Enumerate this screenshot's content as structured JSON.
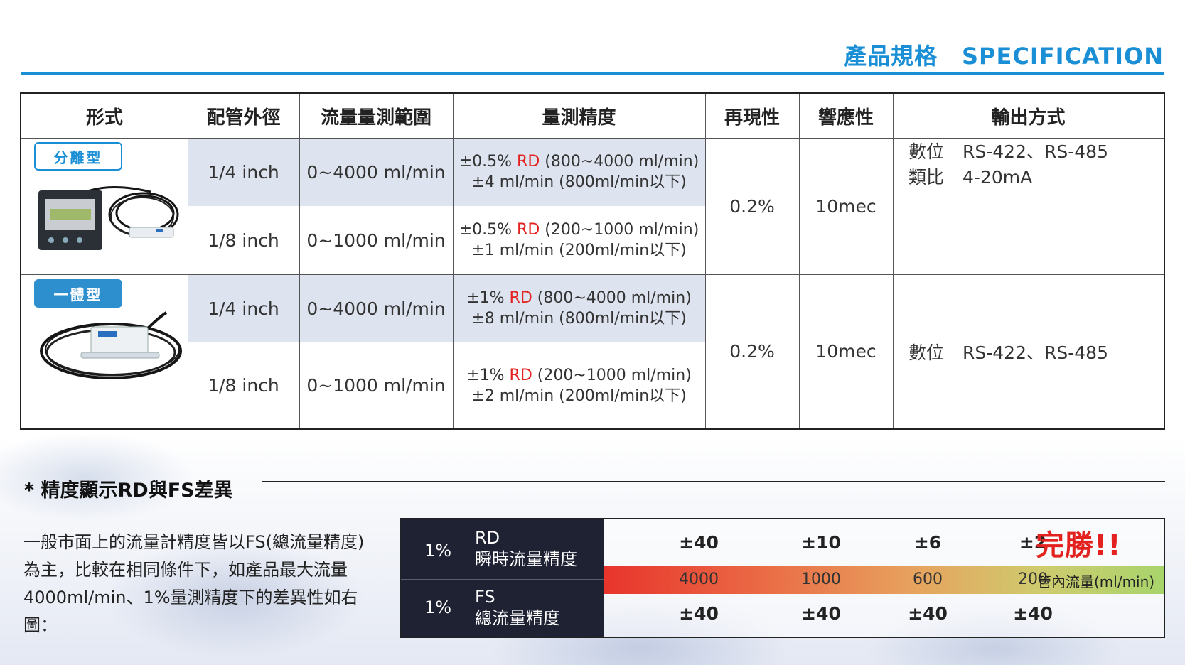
{
  "header": {
    "title_zh": "產品規格",
    "title_en": "SPECIFICATION"
  },
  "spec_table": {
    "headers": [
      "形式",
      "配管外徑",
      "流量量測範圍",
      "量測精度",
      "再現性",
      "響應性",
      "輸出方式"
    ],
    "groups": [
      {
        "type_label": "分離型",
        "rows": [
          {
            "pipe": "1/4 inch",
            "range": "0~4000 ml/min",
            "acc_pre": "±0.5% ",
            "acc_rd": "RD",
            "acc_post": " (800~4000 ml/min)",
            "acc_line2": "±4 ml/min (800ml/min以下)"
          },
          {
            "pipe": "1/8 inch",
            "range": "0~1000 ml/min",
            "acc_pre": "±0.5% ",
            "acc_rd": "RD",
            "acc_post": " (200~1000 ml/min)",
            "acc_line2": "±1 ml/min (200ml/min以下)"
          }
        ],
        "repeatability": "0.2%",
        "response": "10mec",
        "outputs": [
          {
            "kind": "數位",
            "value": "RS-422、RS-485"
          },
          {
            "kind": "類比",
            "value": "4-20mA"
          }
        ]
      },
      {
        "type_label": "一體型",
        "rows": [
          {
            "pipe": "1/4 inch",
            "range": "0~4000 ml/min",
            "acc_pre": "±1% ",
            "acc_rd": "RD",
            "acc_post": " (800~4000 ml/min)",
            "acc_line2": "±8 ml/min (800ml/min以下)"
          },
          {
            "pipe": "1/8 inch",
            "range": "0~1000 ml/min",
            "acc_pre": "±1% ",
            "acc_rd": "RD",
            "acc_post": " (200~1000 ml/min)",
            "acc_line2": "±2 ml/min (200ml/min以下)"
          }
        ],
        "repeatability": "0.2%",
        "response": "10mec",
        "outputs": [
          {
            "kind": "數位",
            "value": "RS-422、RS-485"
          }
        ]
      }
    ]
  },
  "difference": {
    "title": "* 精度顯示RD與FS差異",
    "description": "一般市面上的流量計精度皆以FS(總流量精度)為主，比較在相同條件下，如產品最大流量4000ml/min、1%量測精度下的差異性如右圖："
  },
  "comparison": {
    "rd": {
      "pct": "1%",
      "name": "RD",
      "desc": "瞬時流量精度",
      "values": [
        "±40",
        "±10",
        "±6",
        "±2"
      ]
    },
    "fs": {
      "pct": "1%",
      "name": "FS",
      "desc": "總流量精度",
      "values": [
        "±40",
        "±40",
        "±40",
        "±40"
      ]
    },
    "flows": [
      "4000",
      "1000",
      "600",
      "200"
    ],
    "flow_unit": "管內流量(ml/min)",
    "winner": "完勝!!"
  },
  "colors": {
    "accent": "#1a8fd6",
    "rd_red": "#e3221f",
    "shade": "#dde3ef",
    "dark_panel": "#1f2233"
  }
}
